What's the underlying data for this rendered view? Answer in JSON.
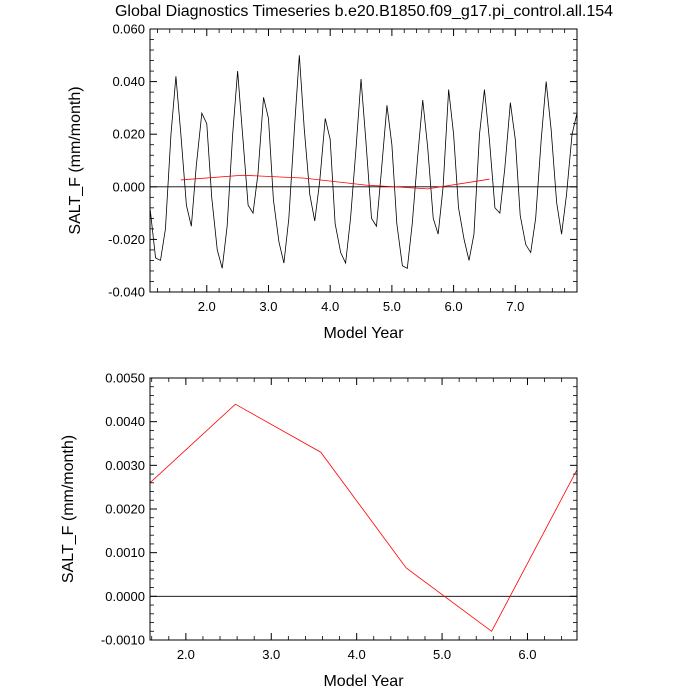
{
  "chart_data": [
    {
      "type": "line",
      "title": "Global Diagnostics Timeseries b.e20.B1850.f09_g17.pi_control.all.154",
      "xlabel": "Model Year",
      "ylabel": "SALT_F (mm/month)",
      "xlim": [
        1.08,
        8.0
      ],
      "ylim": [
        -0.04,
        0.06
      ],
      "xticks": [
        "2.0",
        "3.0",
        "4.0",
        "5.0",
        "6.0",
        "7.0"
      ],
      "yticks": [
        "-0.040",
        "-0.020",
        "0.000",
        "0.020",
        "0.040",
        "0.060"
      ],
      "zero_line": true,
      "series": [
        {
          "color": "#000000",
          "x": [
            1.08,
            1.17,
            1.25,
            1.33,
            1.42,
            1.5,
            1.58,
            1.67,
            1.75,
            1.83,
            1.92,
            2.0,
            2.08,
            2.17,
            2.25,
            2.33,
            2.42,
            2.5,
            2.58,
            2.67,
            2.75,
            2.83,
            2.92,
            3.0,
            3.08,
            3.17,
            3.25,
            3.33,
            3.42,
            3.5,
            3.58,
            3.67,
            3.75,
            3.83,
            3.92,
            4.0,
            4.08,
            4.17,
            4.25,
            4.33,
            4.42,
            4.5,
            4.58,
            4.67,
            4.75,
            4.83,
            4.92,
            5.0,
            5.08,
            5.17,
            5.25,
            5.33,
            5.42,
            5.5,
            5.58,
            5.67,
            5.75,
            5.83,
            5.92,
            6.0,
            6.08,
            6.17,
            6.25,
            6.33,
            6.42,
            6.5,
            6.58,
            6.67,
            6.75,
            6.83,
            6.92,
            7.0,
            7.08,
            7.17,
            7.25,
            7.33,
            7.42,
            7.5,
            7.58,
            7.67,
            7.75,
            7.83,
            7.92,
            8.0
          ],
          "y": [
            -0.008,
            -0.027,
            -0.028,
            -0.016,
            0.02,
            0.042,
            0.02,
            -0.007,
            -0.015,
            0.008,
            0.028,
            0.024,
            -0.004,
            -0.024,
            -0.031,
            -0.015,
            0.02,
            0.044,
            0.02,
            -0.007,
            -0.01,
            0.005,
            0.034,
            0.026,
            -0.005,
            -0.021,
            -0.029,
            -0.012,
            0.022,
            0.05,
            0.022,
            -0.003,
            -0.013,
            0.002,
            0.026,
            0.018,
            -0.014,
            -0.025,
            -0.029,
            -0.012,
            0.015,
            0.041,
            0.017,
            -0.012,
            -0.015,
            0.006,
            0.031,
            0.016,
            -0.014,
            -0.03,
            -0.031,
            -0.014,
            0.012,
            0.033,
            0.015,
            -0.012,
            -0.018,
            0.0,
            0.037,
            0.02,
            -0.008,
            -0.02,
            -0.028,
            -0.018,
            0.02,
            0.037,
            0.018,
            -0.008,
            -0.01,
            0.007,
            0.032,
            0.018,
            -0.011,
            -0.022,
            -0.025,
            -0.012,
            0.018,
            0.04,
            0.022,
            -0.006,
            -0.018,
            -0.003,
            0.02,
            0.028
          ]
        },
        {
          "color": "#ff0000",
          "x": [
            1.58,
            2.58,
            3.58,
            4.58,
            5.58,
            6.58
          ],
          "y": [
            0.0026,
            0.0044,
            0.0033,
            0.00065,
            -0.0008,
            0.0029
          ]
        }
      ]
    },
    {
      "type": "line",
      "title": "",
      "xlabel": "Model Year",
      "ylabel": "SALT_F (mm/month)",
      "xlim": [
        1.58,
        6.58
      ],
      "ylim": [
        -0.001,
        0.005
      ],
      "xticks": [
        "2.0",
        "3.0",
        "4.0",
        "5.0",
        "6.0"
      ],
      "yticks": [
        "-0.0010",
        "0.0000",
        "0.0010",
        "0.0020",
        "0.0030",
        "0.0040",
        "0.0050"
      ],
      "zero_line": true,
      "series": [
        {
          "color": "#ff0000",
          "x": [
            1.58,
            2.58,
            3.58,
            4.58,
            5.58,
            6.58
          ],
          "y": [
            0.0026,
            0.0044,
            0.0033,
            0.00065,
            -0.0008,
            0.0029
          ]
        }
      ]
    }
  ]
}
